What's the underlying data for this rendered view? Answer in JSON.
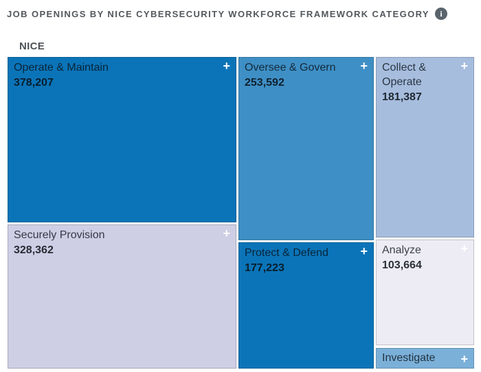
{
  "header": {
    "title": "JOB OPENINGS BY NICE CYBERSECURITY WORKFORCE FRAMEWORK CATEGORY"
  },
  "group_label": "NICE",
  "icons": {
    "info": "i",
    "plus": "+"
  },
  "colors": {
    "dark_blue": "#0b74b8",
    "medium_blue": "#3e8fc5",
    "light_steel_blue": "#a6bdde",
    "sky_blue": "#7bb0d9",
    "lavender": "#cecee5",
    "pale_lavender": "#edecf4",
    "title_gray": "#53575c",
    "info_icon_gray": "#5a646c",
    "page_background": "#ffffff"
  },
  "treemap": {
    "tiles": [
      {
        "id": "operate-maintain",
        "label": "Operate & Maintain",
        "value_text": "378,207",
        "color": "#0b74b8"
      },
      {
        "id": "securely-provision",
        "label": "Securely Provision",
        "value_text": "328,362",
        "color": "#cecee5"
      },
      {
        "id": "oversee-govern",
        "label": "Oversee & Govern",
        "value_text": "253,592",
        "color": "#3e8fc5"
      },
      {
        "id": "protect-defend",
        "label": "Protect & Defend",
        "value_text": "177,223",
        "color": "#0b74b8"
      },
      {
        "id": "collect-operate",
        "label": "Collect & Operate",
        "value_text": "181,387",
        "color": "#a6bdde"
      },
      {
        "id": "analyze",
        "label": "Analyze",
        "value_text": "103,664",
        "color": "#edecf4"
      },
      {
        "id": "investigate",
        "label": "Investigate",
        "value_text": "",
        "color": "#7bb0d9"
      }
    ]
  },
  "chart_data": {
    "type": "treemap",
    "title": "JOB OPENINGS BY NICE CYBERSECURITY WORKFORCE FRAMEWORK CATEGORY",
    "group": "NICE",
    "categories": [
      "Operate & Maintain",
      "Securely Provision",
      "Oversee & Govern",
      "Protect & Defend",
      "Collect & Operate",
      "Analyze",
      "Investigate"
    ],
    "values": [
      378207,
      328362,
      253592,
      177223,
      181387,
      103664,
      null
    ],
    "value_labels": [
      "378,207",
      "328,362",
      "253,592",
      "177,223",
      "181,387",
      "103,664",
      ""
    ],
    "colors": [
      "#0b74b8",
      "#cecee5",
      "#3e8fc5",
      "#0b74b8",
      "#a6bdde",
      "#edecf4",
      "#7bb0d9"
    ],
    "legend": "none"
  }
}
